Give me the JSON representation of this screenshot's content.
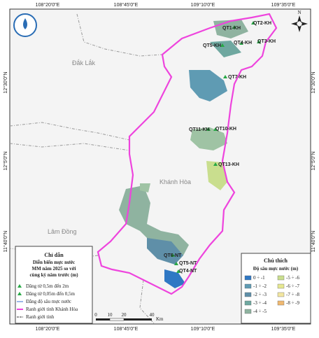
{
  "coordinates": {
    "top": [
      "108°20'0\"E",
      "108°45'0\"E",
      "109°10'0\"E",
      "109°35'0\"E"
    ],
    "bottom": [
      "108°20'0\"E",
      "108°45'0\"E",
      "109°10'0\"E",
      "109°35'0\"E"
    ],
    "left": [
      "12°30'0\"N",
      "12°5'0\"N",
      "11°40'0\"N"
    ],
    "right": [
      "12°30'0\"N",
      "12°5'0\"N",
      "11°40'0\"N"
    ]
  },
  "regions": [
    "Đắk Lắk",
    "Khánh Hòa",
    "Lâm Đồng"
  ],
  "stations": [
    "QT1-KH",
    "QT2-KH",
    "QT3-KH",
    "QT4-KH",
    "QT5-KH",
    "QT7-KH",
    "QT11-KH",
    "QT10-KH",
    "QT13-KH",
    "QT6-NT",
    "QT5-NT",
    "QT4-NT"
  ],
  "legend": {
    "title": "Chỉ dẫn",
    "subtitle": [
      "Diễn biến mực nước",
      "MM năm 2025 so với",
      "cùng kỳ năm trước (m)"
    ],
    "items": [
      "Dâng từ 0,5m đến 2m",
      "Dâng từ 0,05m đến 0,5m",
      "Đẳng độ sâu mực nước",
      "Ranh giới tỉnh Khánh Hòa",
      "Ranh giới tỉnh"
    ]
  },
  "depth_legend": {
    "title": "Chú thích",
    "subtitle": "Độ sâu mực nước (m)",
    "classes": [
      "0 ÷ -1",
      "-1 ÷ -2",
      "-2 ÷ -3",
      "-3 ÷ -4",
      "-4 ÷ -5",
      "-5 ÷ -6",
      "-6 ÷ -7",
      "-7 ÷ -8",
      "-8 ÷ -9"
    ]
  },
  "scale_bar": {
    "labels": [
      "0",
      "10",
      "20",
      "40"
    ],
    "unit": "Km"
  },
  "north": "N"
}
